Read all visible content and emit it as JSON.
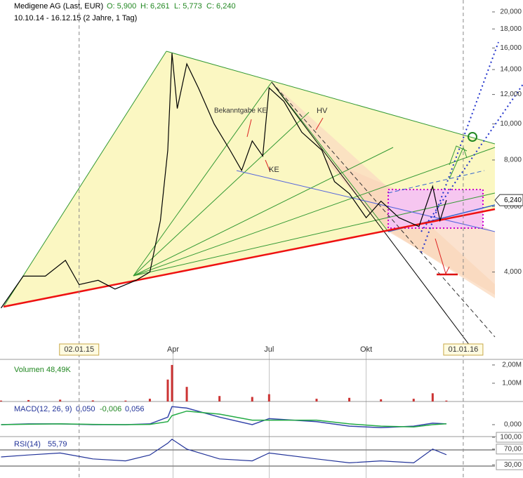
{
  "header": {
    "name": "Medigene AG (Last, EUR)",
    "open": "O: 5,900",
    "high": "H: 6,261",
    "low": "L: 5,773",
    "close": "C: 6,240",
    "range": "10.10.14 - 16.12.15 (2 Jahre, 1 Tag)"
  },
  "chart_data": [
    {
      "type": "line",
      "log_scale": true,
      "color": "#000000",
      "annotations": [
        "Bekanntgabe KE",
        "KE",
        "HV"
      ],
      "price_tag": {
        "value": 6.24,
        "label": "6,240"
      },
      "xlim": [
        "2014-10-19",
        "2016-01-31"
      ],
      "xticks": [
        {
          "value": "2015-01-02",
          "label": "02.01.15"
        },
        {
          "value": "2015-04-01",
          "label": "Apr"
        },
        {
          "value": "2015-07-01",
          "label": "Jul"
        },
        {
          "value": "2015-10-01",
          "label": "Okt"
        },
        {
          "value": "2016-01-01",
          "label": "01.01.16"
        }
      ],
      "ylim": [
        2.35,
        21.53
      ],
      "yticks": [
        {
          "value": 20,
          "label": "20,000"
        },
        {
          "value": 18,
          "label": "18,000"
        },
        {
          "value": 16,
          "label": "16,000"
        },
        {
          "value": 14,
          "label": "14,000"
        },
        {
          "value": 12,
          "label": "12,000"
        },
        {
          "value": 10,
          "label": "10,000"
        },
        {
          "value": 8,
          "label": "8,000"
        },
        {
          "value": 6,
          "label": "6,000"
        },
        {
          "value": 4,
          "label": "4,000"
        }
      ],
      "x": [
        "2014-10-20",
        "2014-11-10",
        "2014-12-01",
        "2014-12-20",
        "2015-01-02",
        "2015-01-20",
        "2015-02-05",
        "2015-02-25",
        "2015-03-10",
        "2015-03-20",
        "2015-03-27",
        "2015-03-31",
        "2015-04-05",
        "2015-04-14",
        "2015-04-25",
        "2015-05-10",
        "2015-05-25",
        "2015-06-05",
        "2015-06-15",
        "2015-06-25",
        "2015-07-01",
        "2015-07-15",
        "2015-08-01",
        "2015-08-20",
        "2015-09-01",
        "2015-09-15",
        "2015-10-01",
        "2015-10-15",
        "2015-11-01",
        "2015-11-20",
        "2015-12-03",
        "2015-12-10",
        "2015-12-16"
      ],
      "values": [
        3.2,
        3.9,
        3.9,
        4.3,
        3.7,
        3.8,
        3.6,
        3.8,
        4.0,
        5.5,
        8.5,
        15.5,
        11,
        14.5,
        12.5,
        10,
        8.5,
        7.5,
        9,
        8.2,
        12.5,
        11.5,
        9.5,
        8.5,
        7,
        6.5,
        5.6,
        6.2,
        5.6,
        5.3,
        6.8,
        5.5,
        6.24
      ]
    },
    {
      "type": "bar",
      "title": "Volumen",
      "last": "48,49K",
      "color": "#cc3333",
      "ylim": [
        0,
        2.19
      ],
      "yticks": [
        {
          "value": 2,
          "label": "2,00M"
        },
        {
          "value": 1,
          "label": "1,00M"
        }
      ],
      "x": [
        "2014-10-20",
        "2014-11-15",
        "2014-12-15",
        "2015-01-15",
        "2015-02-15",
        "2015-03-10",
        "2015-03-27",
        "2015-03-31",
        "2015-04-14",
        "2015-05-15",
        "2015-06-15",
        "2015-07-01",
        "2015-08-15",
        "2015-09-15",
        "2015-10-15",
        "2015-11-15",
        "2015-12-03",
        "2015-12-16"
      ],
      "values": [
        0.05,
        0.08,
        0.1,
        0.06,
        0.05,
        0.15,
        1.2,
        2.0,
        0.8,
        0.3,
        0.25,
        0.4,
        0.15,
        0.2,
        0.12,
        0.15,
        0.45,
        0.05
      ]
    },
    {
      "type": "line",
      "title": "MACD(12, 26, 9)",
      "last_values": [
        "0,050",
        "-0,006",
        "0,056"
      ],
      "ylim": [
        -0.7,
        1.4
      ],
      "yticks": [
        {
          "value": 0,
          "label": "0,000"
        }
      ],
      "x": [
        "2014-10-20",
        "2014-11-15",
        "2014-12-15",
        "2015-01-15",
        "2015-02-15",
        "2015-03-10",
        "2015-03-27",
        "2015-03-31",
        "2015-04-14",
        "2015-05-15",
        "2015-06-15",
        "2015-07-01",
        "2015-08-15",
        "2015-09-15",
        "2015-10-15",
        "2015-11-15",
        "2015-12-03",
        "2015-12-16"
      ],
      "series": [
        {
          "color": "#3344aa",
          "values": [
            0,
            0.05,
            0.05,
            0,
            0,
            0.05,
            0.5,
            1.2,
            1.1,
            0.5,
            0,
            0.4,
            0.2,
            -0.1,
            -0.2,
            -0.1,
            0.1,
            0.05
          ]
        },
        {
          "color": "#22aa44",
          "values": [
            0,
            0.03,
            0.05,
            0.02,
            0,
            0.02,
            0.2,
            0.6,
            0.9,
            0.7,
            0.3,
            0.3,
            0.3,
            0.05,
            -0.1,
            -0.15,
            0,
            0.056
          ]
        }
      ]
    },
    {
      "type": "line",
      "title": "RSI(14)",
      "last": "55,79",
      "color": "#223399",
      "ylim": [
        0,
        100
      ],
      "yticks": [
        {
          "value": 100,
          "label": "100,00"
        },
        {
          "value": 70,
          "label": "70,00"
        },
        {
          "value": 30,
          "label": "30,00"
        }
      ],
      "x": [
        "2014-10-20",
        "2014-11-15",
        "2014-12-15",
        "2015-01-15",
        "2015-02-15",
        "2015-03-10",
        "2015-03-27",
        "2015-03-31",
        "2015-04-14",
        "2015-05-15",
        "2015-06-15",
        "2015-07-01",
        "2015-08-15",
        "2015-09-15",
        "2015-10-15",
        "2015-11-15",
        "2015-12-03",
        "2015-12-16"
      ],
      "values": [
        50,
        55,
        60,
        45,
        40,
        55,
        85,
        95,
        70,
        45,
        40,
        60,
        45,
        35,
        40,
        35,
        70,
        55.79
      ]
    }
  ]
}
